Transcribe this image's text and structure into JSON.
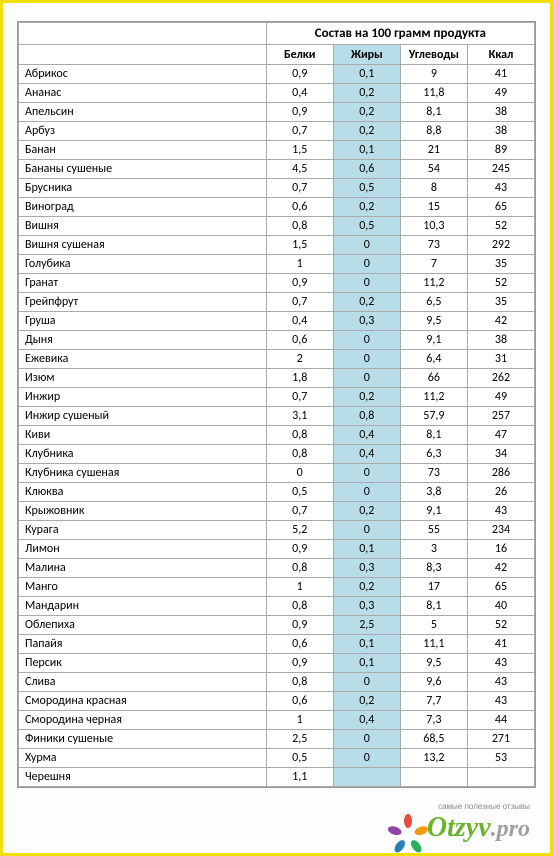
{
  "table": {
    "super_header": "Состав на 100 грамм продукта",
    "columns": [
      "Белки",
      "Жиры",
      "Углеводы",
      "Ккал"
    ],
    "highlight_col_index": 1,
    "highlight_color": "#b8dde8",
    "rows": [
      {
        "name": "Абрикос",
        "v": [
          "0,9",
          "0,1",
          "9",
          "41"
        ]
      },
      {
        "name": "Ананас",
        "v": [
          "0,4",
          "0,2",
          "11,8",
          "49"
        ]
      },
      {
        "name": "Апельсин",
        "v": [
          "0,9",
          "0,2",
          "8,1",
          "38"
        ]
      },
      {
        "name": "Арбуз",
        "v": [
          "0,7",
          "0,2",
          "8,8",
          "38"
        ]
      },
      {
        "name": "Банан",
        "v": [
          "1,5",
          "0,1",
          "21",
          "89"
        ]
      },
      {
        "name": "Бананы сушеные",
        "v": [
          "4,5",
          "0,6",
          "54",
          "245"
        ]
      },
      {
        "name": "Брусника",
        "v": [
          "0,7",
          "0,5",
          "8",
          "43"
        ]
      },
      {
        "name": "Виноград",
        "v": [
          "0,6",
          "0,2",
          "15",
          "65"
        ]
      },
      {
        "name": "Вишня",
        "v": [
          "0,8",
          "0,5",
          "10,3",
          "52"
        ]
      },
      {
        "name": "Вишня сушеная",
        "v": [
          "1,5",
          "0",
          "73",
          "292"
        ]
      },
      {
        "name": "Голубика",
        "v": [
          "1",
          "0",
          "7",
          "35"
        ]
      },
      {
        "name": "Гранат",
        "v": [
          "0,9",
          "0",
          "11,2",
          "52"
        ]
      },
      {
        "name": "Грейпфрут",
        "v": [
          "0,7",
          "0,2",
          "6,5",
          "35"
        ]
      },
      {
        "name": "Груша",
        "v": [
          "0,4",
          "0,3",
          "9,5",
          "42"
        ]
      },
      {
        "name": "Дыня",
        "v": [
          "0,6",
          "0",
          "9,1",
          "38"
        ]
      },
      {
        "name": "Ежевика",
        "v": [
          "2",
          "0",
          "6,4",
          "31"
        ]
      },
      {
        "name": "Изюм",
        "v": [
          "1,8",
          "0",
          "66",
          "262"
        ]
      },
      {
        "name": "Инжир",
        "v": [
          "0,7",
          "0,2",
          "11,2",
          "49"
        ]
      },
      {
        "name": "Инжир сушеный",
        "v": [
          "3,1",
          "0,8",
          "57,9",
          "257"
        ]
      },
      {
        "name": "Киви",
        "v": [
          "0,8",
          "0,4",
          "8,1",
          "47"
        ]
      },
      {
        "name": "Клубника",
        "v": [
          "0,8",
          "0,4",
          "6,3",
          "34"
        ]
      },
      {
        "name": "Клубника сушеная",
        "v": [
          "0",
          "0",
          "73",
          "286"
        ]
      },
      {
        "name": "Клюква",
        "v": [
          "0,5",
          "0",
          "3,8",
          "26"
        ]
      },
      {
        "name": "Крыжовник",
        "v": [
          "0,7",
          "0,2",
          "9,1",
          "43"
        ]
      },
      {
        "name": "Курага",
        "v": [
          "5,2",
          "0",
          "55",
          "234"
        ]
      },
      {
        "name": "Лимон",
        "v": [
          "0,9",
          "0,1",
          "3",
          "16"
        ]
      },
      {
        "name": "Малина",
        "v": [
          "0,8",
          "0,3",
          "8,3",
          "42"
        ]
      },
      {
        "name": "Манго",
        "v": [
          "1",
          "0,2",
          "17",
          "65"
        ]
      },
      {
        "name": "Мандарин",
        "v": [
          "0,8",
          "0,3",
          "8,1",
          "40"
        ]
      },
      {
        "name": "Облепиха",
        "v": [
          "0,9",
          "2,5",
          "5",
          "52"
        ]
      },
      {
        "name": "Папайя",
        "v": [
          "0,6",
          "0,1",
          "11,1",
          "41"
        ]
      },
      {
        "name": "Персик",
        "v": [
          "0,9",
          "0,1",
          "9,5",
          "43"
        ]
      },
      {
        "name": "Слива",
        "v": [
          "0,8",
          "0",
          "9,6",
          "43"
        ]
      },
      {
        "name": "Смородина красная",
        "v": [
          "0,6",
          "0,2",
          "7,7",
          "43"
        ]
      },
      {
        "name": "Смородина черная",
        "v": [
          "1",
          "0,4",
          "7,3",
          "44"
        ]
      },
      {
        "name": "Финики сушеные",
        "v": [
          "2,5",
          "0",
          "68,5",
          "271"
        ]
      },
      {
        "name": "Хурма",
        "v": [
          "0,5",
          "0",
          "13,2",
          "53"
        ]
      },
      {
        "name": "Черешня",
        "v": [
          "1,1",
          "",
          "",
          ""
        ]
      }
    ]
  },
  "watermark": {
    "brand_main": "Otzyv",
    "brand_suffix": ".pro",
    "tagline": "самые полезные отзывы",
    "petal_colors": [
      "#e74c3c",
      "#f39c12",
      "#27ae60",
      "#2980b9",
      "#8e44ad"
    ]
  }
}
